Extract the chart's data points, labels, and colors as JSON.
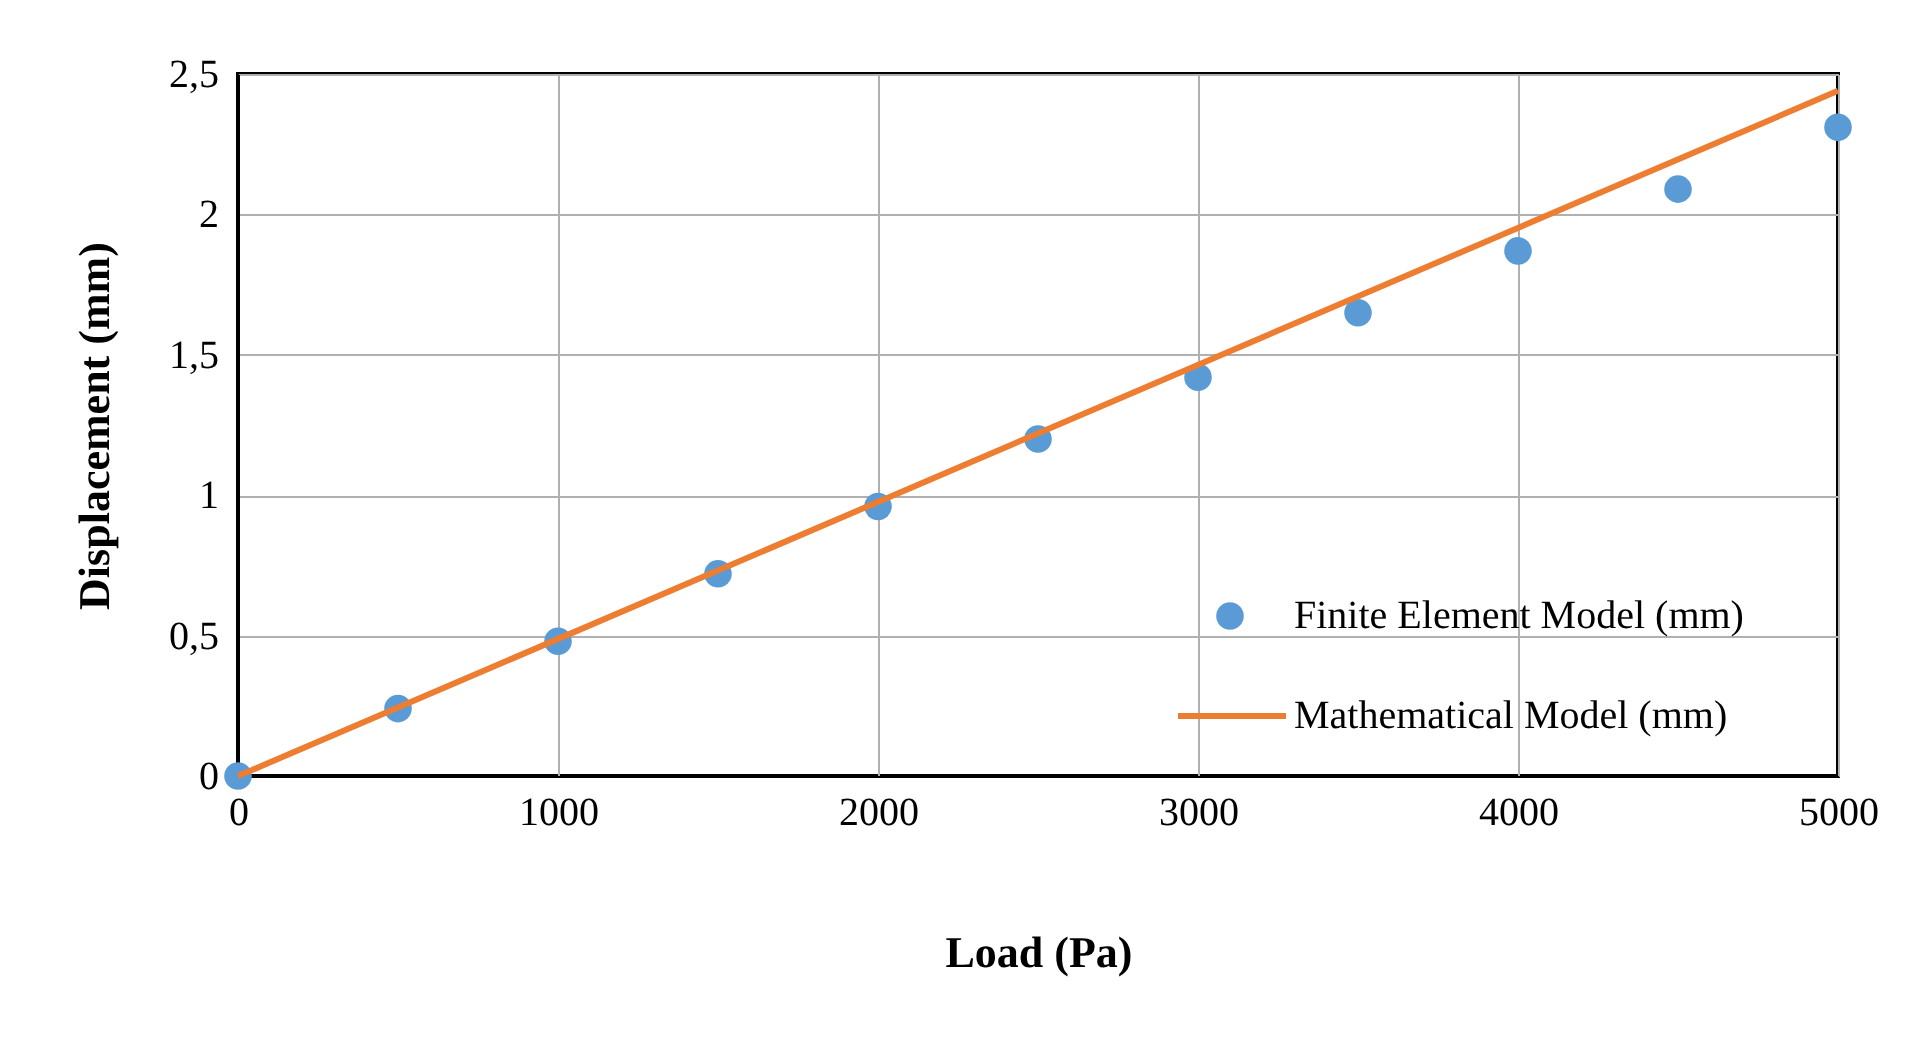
{
  "chart_data": {
    "type": "scatter",
    "xlabel": "Load (Pa)",
    "ylabel": "Displacement (mm)",
    "series": [
      {
        "name": "Finite Element Model (mm)",
        "marker": "circle",
        "color": "#5b9bd5",
        "x": [
          0,
          500,
          1000,
          1500,
          2000,
          2500,
          3000,
          3500,
          4000,
          4500,
          5000
        ],
        "values": [
          0,
          0.24,
          0.48,
          0.72,
          0.96,
          1.2,
          1.42,
          1.65,
          1.87,
          2.09,
          2.31
        ]
      },
      {
        "name": "Mathematical Model (mm)",
        "type": "line",
        "marker": "none",
        "line_style": "solid",
        "color": "#ed7d31",
        "x": [
          0,
          5000
        ],
        "values": [
          0,
          2.44
        ]
      }
    ],
    "xlim": [
      0,
      5000
    ],
    "xticks": [
      0,
      1000,
      2000,
      3000,
      4000,
      5000
    ],
    "ylim": [
      0,
      2.5
    ],
    "yticks": [
      0,
      {
        "value": 0.5,
        "label": "0,5"
      },
      1,
      {
        "value": 1.5,
        "label": "1,5"
      },
      2,
      {
        "value": 2.5,
        "label": "2,5"
      }
    ],
    "grid": true,
    "legend": "bottom right"
  }
}
